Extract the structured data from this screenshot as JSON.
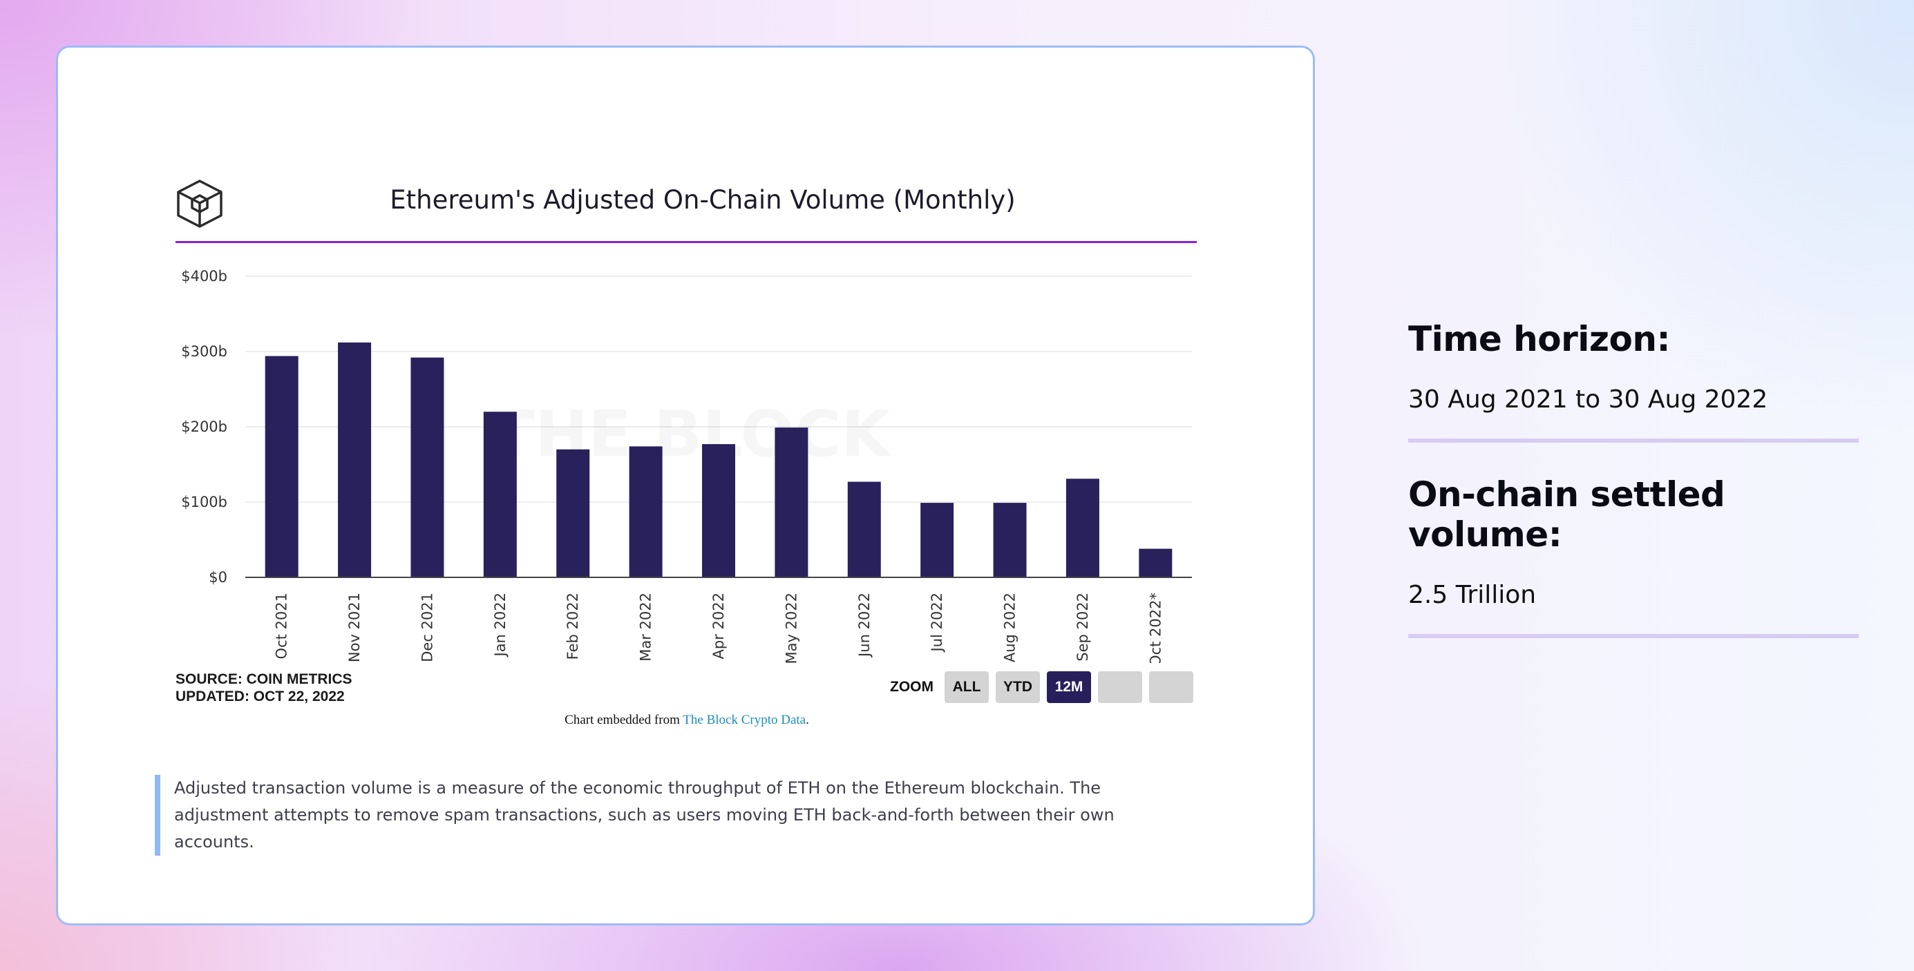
{
  "chart_data": {
    "type": "bar",
    "title": "Ethereum's Adjusted On-Chain Volume (Monthly)",
    "categories": [
      "Oct 2021",
      "Nov 2021",
      "Dec 2021",
      "Jan 2022",
      "Feb 2022",
      "Mar 2022",
      "Apr 2022",
      "May 2022",
      "Jun 2022",
      "Jul 2022",
      "Aug 2022",
      "Sep 2022",
      "Oct 2022*"
    ],
    "values": [
      294,
      312,
      292,
      220,
      170,
      174,
      177,
      199,
      127,
      99,
      99,
      131,
      38
    ],
    "ylim": [
      0,
      400
    ],
    "yticks": [
      0,
      100,
      200,
      300,
      400
    ],
    "ytick_labels": [
      "$0",
      "$100b",
      "$200b",
      "$300b",
      "$400b"
    ],
    "xlabel": "",
    "ylabel": "",
    "watermark": "THE BLOCK",
    "bar_color": "#29215c"
  },
  "chart": {
    "source_line": "SOURCE: COIN METRICS",
    "updated_line": "UPDATED: OCT 22, 2022",
    "zoom_label": "ZOOM",
    "zoom_buttons": [
      "ALL",
      "YTD",
      "12M"
    ],
    "embedded_prefix": "Chart embedded from ",
    "embedded_link": "The Block Crypto Data",
    "embedded_suffix": "."
  },
  "description": "Adjusted transaction volume is a measure of the economic throughput of ETH on the Ethereum blockchain. The adjustment attempts to remove spam transactions, such as users moving ETH back-and-forth between their own accounts.",
  "sidebar": {
    "time_heading": "Time horizon:",
    "time_value": "30 Aug 2021 to 30 Aug 2022",
    "volume_heading": "On-chain settled volume:",
    "volume_value": "2.5 Trillion"
  },
  "colors": {
    "accent_rule": "#8b1fd6",
    "active_button": "#271f5c",
    "link": "#1c8db8"
  }
}
